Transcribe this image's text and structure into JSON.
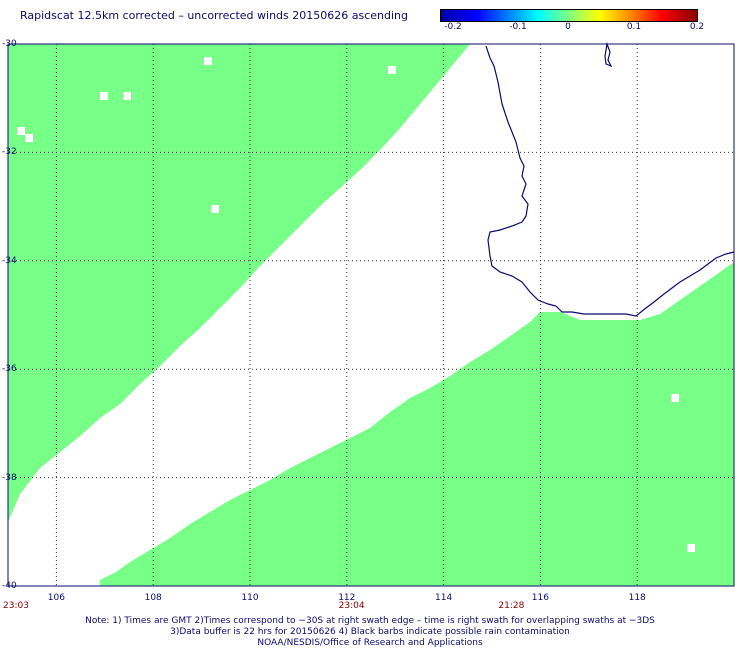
{
  "title": "Rapidscat 12.5km corrected – uncorrected winds 20150626 ascending",
  "colorbar": {
    "labels": [
      "-0.2",
      "-0.1",
      "0",
      "0.1",
      "0.2"
    ],
    "values": [
      -0.2,
      -0.1,
      0,
      0.1,
      0.2
    ]
  },
  "map": {
    "lon_range": [
      105,
      120
    ],
    "lat_range": [
      -40,
      -30
    ],
    "lat_labels": [
      "-30",
      "-32",
      "-34",
      "-36",
      "-38",
      "-40"
    ],
    "lat_values": [
      -30,
      -32,
      -34,
      -36,
      -38,
      -40
    ],
    "lon_labels": [
      "106",
      "108",
      "110",
      "112",
      "114",
      "116",
      "118"
    ],
    "lon_values": [
      106,
      108,
      110,
      112,
      114,
      116,
      118
    ],
    "swath_color": "#77ff88",
    "coast_color": "#0b0b6e",
    "grid_color": "#333333"
  },
  "times": [
    {
      "label": "23:03",
      "lon": 105.0
    },
    {
      "label": "23:04",
      "lon": 112.1
    },
    {
      "label": "21:28",
      "lon": 115.4
    }
  ],
  "notes": [
    "Note: 1) Times are GMT 2)Times correspond to −30S at right swath edge – time is right swath for overlapping swaths at −3DS",
    "3)Data buffer is 22 hrs for 20150626 4) Black barbs indicate possible rain contamination",
    "NOAA/NESDIS/Office of Research and Applications"
  ]
}
